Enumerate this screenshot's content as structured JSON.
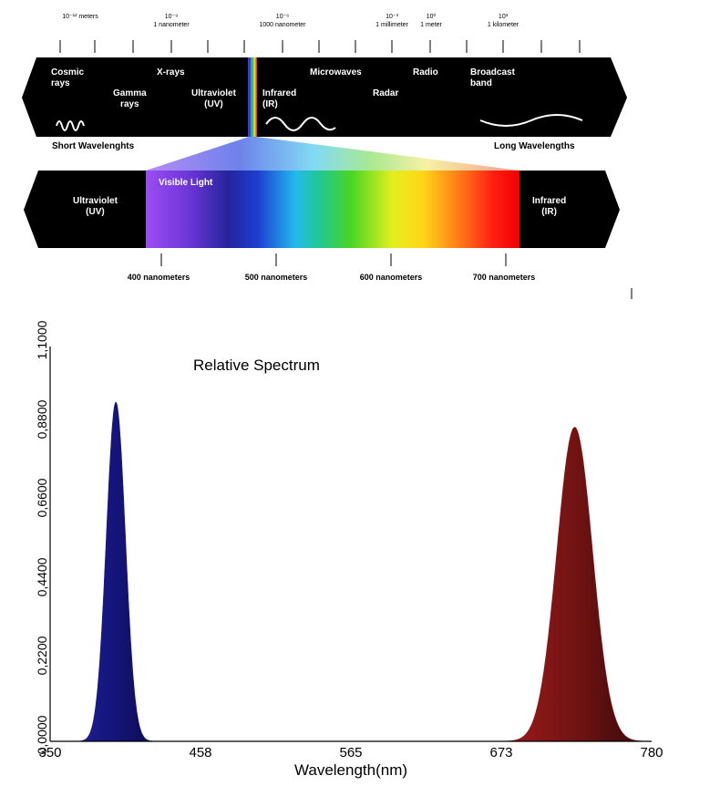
{
  "em_diagram": {
    "scale_labels": [
      {
        "line1": "10⁻¹² meters",
        "line2": ""
      },
      {
        "line1": "10⁻⁹",
        "line2": "1 nanometer"
      },
      {
        "line1": "10⁻⁶",
        "line2": "1000 nanometer"
      },
      {
        "line1": "10⁻³",
        "line2": "1 millimeter"
      },
      {
        "line1": "10⁰",
        "line2": "1 meter"
      },
      {
        "line1": "10³",
        "line2": "1 kilometer"
      }
    ],
    "bands_top": [
      {
        "text": "Cosmic\nrays"
      },
      {
        "text": "X-rays"
      },
      {
        "text": "Gamma\nrays"
      },
      {
        "text": "Ultraviolet\n(UV)"
      },
      {
        "text": "Infrared\n(IR)"
      },
      {
        "text": "Microwaves"
      },
      {
        "text": "Radar"
      },
      {
        "text": "Radio"
      },
      {
        "text": "Broadcast\nband"
      }
    ],
    "short_label": "Short Wavelenghts",
    "long_label": "Long Wavelengths",
    "visible_left": "Ultraviolet\n(UV)",
    "visible_title": "Visible Light",
    "visible_right": "Infrared\n(IR)",
    "nm_labels": [
      "400 nanometers",
      "500 nanometers",
      "600 nanometers",
      "700 nanometers"
    ]
  },
  "chart_data": {
    "type": "area",
    "title": "Relative Spectrum",
    "xlabel": "Wavelength(nm)",
    "ylabel": "",
    "xlim": [
      350,
      780
    ],
    "ylim": [
      0,
      1.1
    ],
    "x_ticks": [
      "350",
      "458",
      "565",
      "673",
      "780"
    ],
    "y_ticks": [
      "0,0000",
      "0,2200",
      "0,4400",
      "0,6600",
      "0,8800",
      "1,1000"
    ],
    "series": [
      {
        "peak_x": 397,
        "peak_y": 0.945,
        "fwhm": 16,
        "color": "#1a1a8c"
      },
      {
        "peak_x": 725,
        "peak_y": 0.875,
        "fwhm": 30,
        "color": "#8b1a1a"
      }
    ]
  }
}
